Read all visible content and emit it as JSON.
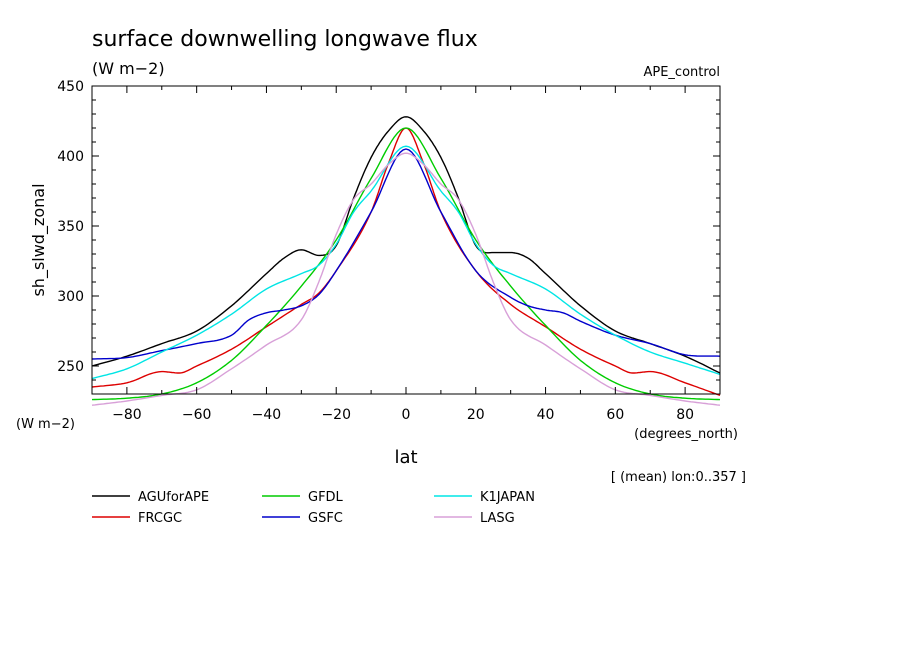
{
  "chart_data": {
    "type": "line",
    "title": "surface downwelling longwave flux",
    "units": "(W m−2)",
    "experiment": "APE_control",
    "ylabel": "sh_slwd_zonal",
    "y_units": "(W m−2)",
    "xlabel": "lat",
    "x_units": "(degrees_north)",
    "note": "[ (mean) lon:0..357 ]",
    "xlim": [
      -90,
      90
    ],
    "ylim": [
      230,
      450
    ],
    "x_ticks": [
      -80,
      -60,
      -40,
      -20,
      0,
      20,
      40,
      60,
      80
    ],
    "x_tick_labels": [
      "−80",
      "−60",
      "−40",
      "−20",
      "0",
      "20",
      "40",
      "60",
      "80"
    ],
    "y_ticks": [
      250,
      300,
      350,
      400,
      450
    ],
    "y_tick_labels": [
      "250",
      "300",
      "350",
      "400",
      "450"
    ],
    "grid": false,
    "legend_position": "bottom",
    "series": [
      {
        "name": "AGUforAPE",
        "color": "#000000",
        "x": [
          -90,
          -80,
          -70,
          -60,
          -50,
          -40,
          -35,
          -30,
          -25,
          -20,
          -15,
          -10,
          -5,
          0,
          5,
          10,
          15,
          20,
          25,
          30,
          35,
          40,
          50,
          60,
          70,
          80,
          90
        ],
        "values": [
          250,
          257,
          266,
          275,
          293,
          316,
          327,
          333,
          329,
          336,
          370,
          399,
          418,
          428,
          418,
          399,
          370,
          336,
          331,
          331,
          327,
          316,
          293,
          275,
          266,
          257,
          245
        ]
      },
      {
        "name": "FRCGC",
        "color": "#dd0000",
        "x": [
          -90,
          -80,
          -70,
          -65,
          -60,
          -50,
          -40,
          -30,
          -25,
          -20,
          -10,
          -5,
          0,
          5,
          10,
          20,
          30,
          40,
          50,
          60,
          65,
          70,
          80,
          90
        ],
        "values": [
          235,
          238,
          246,
          245,
          250,
          262,
          278,
          294,
          302,
          318,
          360,
          395,
          420,
          395,
          360,
          318,
          294,
          278,
          262,
          250,
          245,
          246,
          238,
          229
        ]
      },
      {
        "name": "GFDL",
        "color": "#00cc00",
        "x": [
          -90,
          -80,
          -70,
          -60,
          -50,
          -40,
          -30,
          -20,
          -10,
          0,
          10,
          20,
          30,
          40,
          50,
          60,
          70,
          80,
          90
        ],
        "values": [
          226,
          227,
          230,
          238,
          254,
          279,
          307,
          340,
          384,
          420,
          384,
          340,
          307,
          279,
          254,
          238,
          230,
          227,
          226
        ]
      },
      {
        "name": "GSFC",
        "color": "#0000cc",
        "x": [
          -90,
          -80,
          -70,
          -60,
          -50,
          -45,
          -40,
          -35,
          -30,
          -25,
          -20,
          -10,
          0,
          10,
          20,
          30,
          35,
          40,
          45,
          50,
          60,
          70,
          80,
          90
        ],
        "values": [
          255,
          256,
          261,
          266,
          272,
          283,
          288,
          290,
          293,
          301,
          318,
          360,
          405,
          360,
          318,
          299,
          293,
          290,
          288,
          282,
          272,
          266,
          258,
          257
        ]
      },
      {
        "name": "K1JAPAN",
        "color": "#00e5e5",
        "x": [
          -90,
          -80,
          -70,
          -60,
          -50,
          -40,
          -30,
          -25,
          -20,
          -15,
          -10,
          0,
          10,
          15,
          20,
          25,
          30,
          40,
          50,
          60,
          70,
          80,
          90
        ],
        "values": [
          241,
          248,
          260,
          272,
          287,
          305,
          316,
          322,
          337,
          360,
          375,
          407,
          375,
          360,
          337,
          322,
          316,
          305,
          287,
          272,
          260,
          252,
          244
        ]
      },
      {
        "name": "LASG",
        "color": "#d8a0d8",
        "x": [
          -90,
          -80,
          -70,
          -60,
          -50,
          -40,
          -30,
          -25,
          -20,
          -15,
          -10,
          -5,
          0,
          5,
          10,
          15,
          20,
          25,
          30,
          40,
          50,
          60,
          70,
          80,
          90
        ],
        "values": [
          222,
          225,
          229,
          233,
          248,
          265,
          283,
          310,
          344,
          369,
          380,
          394,
          402,
          394,
          380,
          369,
          344,
          310,
          283,
          265,
          248,
          233,
          229,
          225,
          222
        ]
      }
    ]
  }
}
